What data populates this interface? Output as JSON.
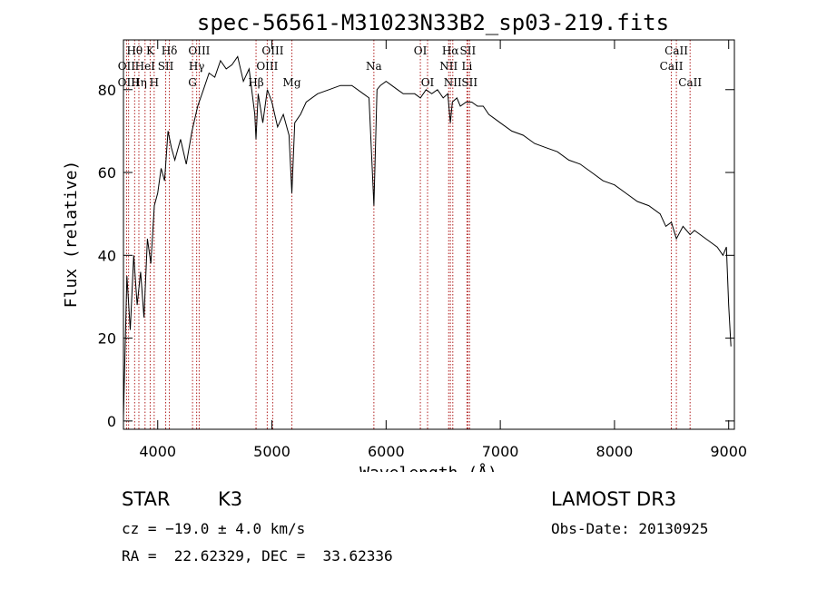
{
  "chart_data": {
    "type": "line",
    "title": "spec-56561-M31023N33B2_sp03-219.fits",
    "xlabel": "Wavelength (Å)",
    "ylabel": "Flux (relative)",
    "xlim": [
      3700,
      9050
    ],
    "ylim": [
      -2,
      92
    ],
    "xticks": [
      4000,
      5000,
      6000,
      7000,
      8000,
      9000
    ],
    "yticks": [
      0,
      20,
      40,
      60,
      80
    ],
    "series": [
      {
        "name": "flux",
        "color": "#000000",
        "x": [
          3700,
          3730,
          3760,
          3790,
          3820,
          3850,
          3880,
          3910,
          3940,
          3970,
          4000,
          4030,
          4060,
          4090,
          4120,
          4150,
          4200,
          4250,
          4300,
          4350,
          4400,
          4450,
          4500,
          4550,
          4600,
          4650,
          4700,
          4750,
          4800,
          4850,
          4861,
          4880,
          4920,
          4960,
          5000,
          5050,
          5100,
          5150,
          5175,
          5200,
          5250,
          5300,
          5400,
          5500,
          5600,
          5700,
          5800,
          5850,
          5893,
          5920,
          5950,
          6000,
          6050,
          6100,
          6150,
          6200,
          6250,
          6300,
          6350,
          6400,
          6450,
          6500,
          6540,
          6563,
          6580,
          6620,
          6650,
          6700,
          6750,
          6800,
          6850,
          6900,
          6950,
          7000,
          7100,
          7200,
          7300,
          7400,
          7500,
          7600,
          7700,
          7800,
          7900,
          8000,
          8100,
          8200,
          8300,
          8400,
          8450,
          8498,
          8542,
          8600,
          8662,
          8700,
          8800,
          8900,
          8950,
          8980,
          9000,
          9020
        ],
        "values": [
          1,
          35,
          22,
          40,
          28,
          36,
          25,
          44,
          38,
          52,
          55,
          61,
          58,
          70,
          66,
          63,
          68,
          62,
          70,
          76,
          80,
          84,
          83,
          87,
          85,
          86,
          88,
          82,
          85,
          74,
          68,
          79,
          72,
          80,
          77,
          71,
          74,
          69,
          55,
          72,
          74,
          77,
          79,
          80,
          81,
          81,
          79,
          78,
          52,
          80,
          81,
          82,
          81,
          80,
          79,
          79,
          79,
          78,
          80,
          79,
          80,
          78,
          79,
          72,
          77,
          78,
          76,
          77,
          77,
          76,
          76,
          74,
          73,
          72,
          70,
          69,
          67,
          66,
          65,
          63,
          62,
          60,
          58,
          57,
          55,
          53,
          52,
          50,
          47,
          48,
          44,
          47,
          45,
          46,
          44,
          42,
          40,
          42,
          28,
          18
        ]
      }
    ],
    "lines": [
      {
        "label": "Hθ",
        "x": 3798,
        "row": 1
      },
      {
        "label": "OII",
        "x": 3727,
        "row": 2
      },
      {
        "label": "OIII",
        "x": 3745,
        "row": 3
      },
      {
        "label": "K",
        "x": 3934,
        "row": 1
      },
      {
        "label": "HeI",
        "x": 3889,
        "row": 2
      },
      {
        "label": "Hη",
        "x": 3835,
        "row": 3
      },
      {
        "label": "Hδ",
        "x": 4102,
        "row": 1
      },
      {
        "label": "SII",
        "x": 4070,
        "row": 2
      },
      {
        "label": "H",
        "x": 3969,
        "row": 3
      },
      {
        "label": "OIII",
        "x": 4363,
        "row": 1
      },
      {
        "label": "Hγ",
        "x": 4341,
        "row": 2
      },
      {
        "label": "G",
        "x": 4305,
        "row": 3
      },
      {
        "label": "OIII",
        "x": 5007,
        "row": 1
      },
      {
        "label": "OIII",
        "x": 4959,
        "row": 2
      },
      {
        "label": "Hβ",
        "x": 4861,
        "row": 3
      },
      {
        "label": "Mg",
        "x": 5175,
        "row": 3
      },
      {
        "label": "Na",
        "x": 5893,
        "row": 2
      },
      {
        "label": "OI",
        "x": 6300,
        "row": 1
      },
      {
        "label": "OI",
        "x": 6363,
        "row": 3
      },
      {
        "label": "Hα",
        "x": 6563,
        "row": 1
      },
      {
        "label": "NII",
        "x": 6548,
        "row": 2
      },
      {
        "label": "NII",
        "x": 6584,
        "row": 3
      },
      {
        "label": "SII",
        "x": 6716,
        "row": 1
      },
      {
        "label": "Li",
        "x": 6708,
        "row": 2
      },
      {
        "label": "SII",
        "x": 6731,
        "row": 3
      },
      {
        "label": "CaII",
        "x": 8542,
        "row": 1
      },
      {
        "label": "CaII",
        "x": 8498,
        "row": 2
      },
      {
        "label": "CaII",
        "x": 8662,
        "row": 3
      }
    ]
  },
  "info": {
    "class_label": "STAR",
    "subclass": "K3",
    "cz": "cz = −19.0 ± 4.0 km/s",
    "radec": "RA =  22.62329, DEC =  33.62336",
    "survey": "LAMOST DR3",
    "obs_date": "Obs-Date: 20130925"
  }
}
